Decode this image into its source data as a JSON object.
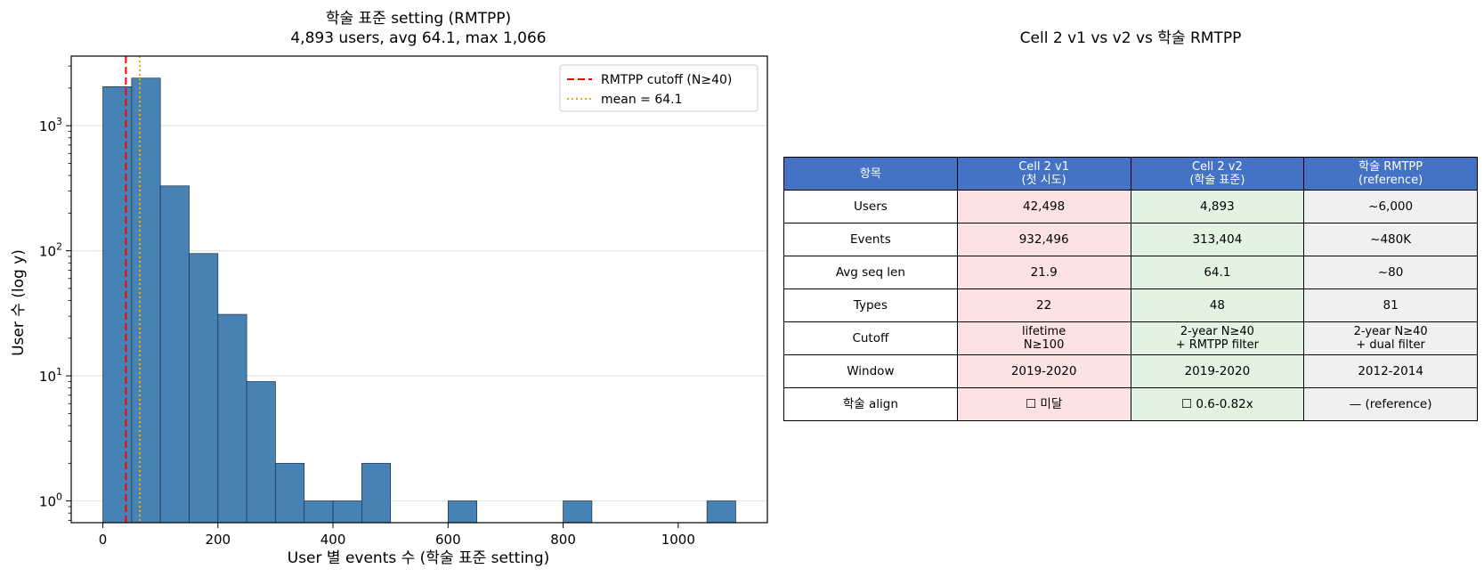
{
  "chart_data": {
    "type": "bar",
    "title": "학술 표준 setting (RMTPP)\n4,893 users, avg 64.1, max 1,066",
    "xlabel": "User 별 events 수 (학술 표준 setting)",
    "ylabel": "User 수 (log y)",
    "yscale": "log",
    "xlim": [
      -55,
      1155
    ],
    "ylim": [
      0.67,
      3600
    ],
    "xticks": [
      0,
      200,
      400,
      600,
      800,
      1000
    ],
    "yticks": [
      {
        "value": 1,
        "base": "10",
        "exp": "0"
      },
      {
        "value": 10,
        "base": "10",
        "exp": "1"
      },
      {
        "value": 100,
        "base": "10",
        "exp": "2"
      },
      {
        "value": 1000,
        "base": "10",
        "exp": "3"
      }
    ],
    "bin_width": 50,
    "bins": [
      {
        "x0": 0,
        "value": 2050
      },
      {
        "x0": 50,
        "value": 2400
      },
      {
        "x0": 100,
        "value": 330
      },
      {
        "x0": 150,
        "value": 95
      },
      {
        "x0": 200,
        "value": 31
      },
      {
        "x0": 250,
        "value": 9
      },
      {
        "x0": 300,
        "value": 2
      },
      {
        "x0": 350,
        "value": 1
      },
      {
        "x0": 400,
        "value": 1
      },
      {
        "x0": 450,
        "value": 2
      },
      {
        "x0": 600,
        "value": 1
      },
      {
        "x0": 800,
        "value": 1
      },
      {
        "x0": 1050,
        "value": 1
      }
    ],
    "bar_color": "#4682b4",
    "grid": "y",
    "legend_position": "top-right",
    "reference_lines": [
      {
        "label": "RMTPP cutoff (N≥40)",
        "x": 40,
        "color": "#ff0000",
        "style": "dashed"
      },
      {
        "label": "mean = 64.1",
        "x": 64.1,
        "color": "#ffa500",
        "style": "dotted"
      }
    ]
  },
  "table": {
    "title": "Cell 2 v1 vs v2 vs 학술 RMTPP",
    "header": [
      "항목",
      "Cell 2 v1\n(첫 시도)",
      "Cell 2 v2\n(학술 표준)",
      "학술 RMTPP\n(reference)"
    ],
    "rows": [
      [
        "Users",
        "42,498",
        "4,893",
        "~6,000"
      ],
      [
        "Events",
        "932,496",
        "313,404",
        "~480K"
      ],
      [
        "Avg seq len",
        "21.9",
        "64.1",
        "~80"
      ],
      [
        "Types",
        "22",
        "48",
        "81"
      ],
      [
        "Cutoff",
        "lifetime\nN≥100",
        "2-year N≥40\n+ RMTPP filter",
        "2-year N≥40\n+ dual filter"
      ],
      [
        "Window",
        "2019-2020",
        "2019-2020",
        "2012-2014"
      ],
      [
        "학술 align",
        "☐ 미달",
        "☐ 0.6-0.82x",
        "— (reference)"
      ]
    ],
    "colors": {
      "header": "#4472c4",
      "v1": "#fde2e4",
      "v2": "#e2f3e2",
      "ref": "#f0f0f0"
    }
  }
}
